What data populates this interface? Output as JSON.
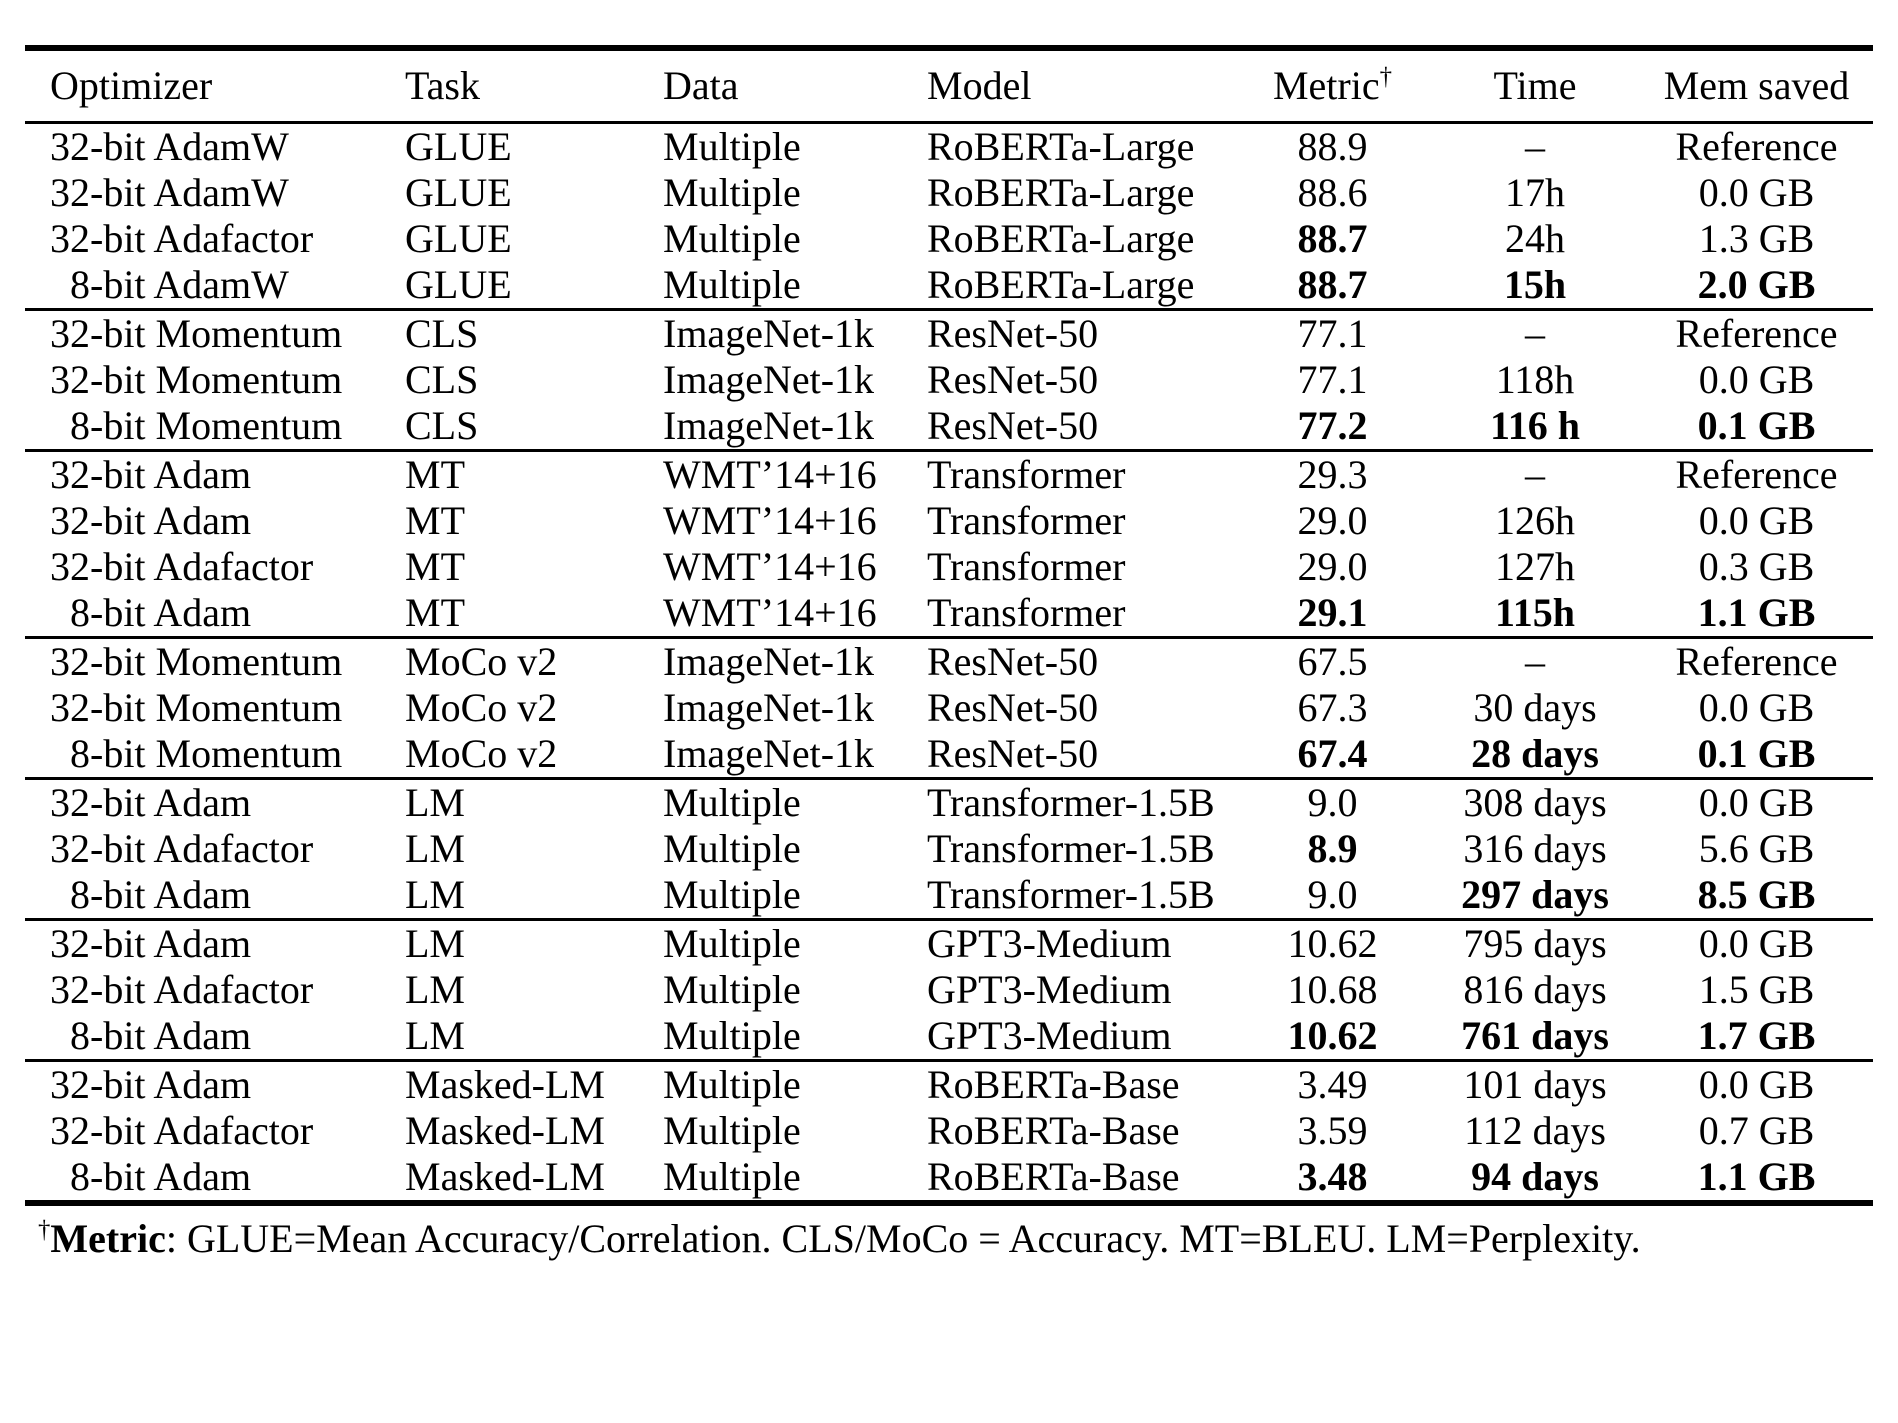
{
  "table": {
    "header": {
      "optimizer": "Optimizer",
      "task": "Task",
      "data": "Data",
      "model": "Model",
      "metric": "Metric",
      "metric_sup": "†",
      "time": "Time",
      "mem": "Mem saved"
    },
    "groups": [
      {
        "rows": [
          {
            "cells": [
              "32-bit AdamW",
              "GLUE",
              "Multiple",
              "RoBERTa-Large",
              "88.9",
              "–",
              "Reference"
            ],
            "bold": []
          },
          {
            "cells": [
              "32-bit AdamW",
              "GLUE",
              "Multiple",
              "RoBERTa-Large",
              "88.6",
              "17h",
              "0.0 GB"
            ],
            "bold": []
          },
          {
            "cells": [
              "32-bit Adafactor",
              "GLUE",
              "Multiple",
              "RoBERTa-Large",
              "88.7",
              "24h",
              "1.3 GB"
            ],
            "bold": [
              4
            ]
          },
          {
            "cells": [
              "8-bit AdamW",
              "GLUE",
              "Multiple",
              "RoBERTa-Large",
              "88.7",
              "15h",
              "2.0 GB"
            ],
            "bold": [
              4,
              5,
              6
            ]
          }
        ]
      },
      {
        "rows": [
          {
            "cells": [
              "32-bit Momentum",
              "CLS",
              "ImageNet-1k",
              "ResNet-50",
              "77.1",
              "–",
              "Reference"
            ],
            "bold": []
          },
          {
            "cells": [
              "32-bit Momentum",
              "CLS",
              "ImageNet-1k",
              "ResNet-50",
              "77.1",
              "118h",
              "0.0 GB"
            ],
            "bold": []
          },
          {
            "cells": [
              "8-bit Momentum",
              "CLS",
              "ImageNet-1k",
              "ResNet-50",
              "77.2",
              "116 h",
              "0.1 GB"
            ],
            "bold": [
              4,
              5,
              6
            ]
          }
        ]
      },
      {
        "rows": [
          {
            "cells": [
              "32-bit Adam",
              "MT",
              "WMT’14+16",
              "Transformer",
              "29.3",
              "–",
              "Reference"
            ],
            "bold": []
          },
          {
            "cells": [
              "32-bit Adam",
              "MT",
              "WMT’14+16",
              "Transformer",
              "29.0",
              "126h",
              "0.0 GB"
            ],
            "bold": []
          },
          {
            "cells": [
              "32-bit Adafactor",
              "MT",
              "WMT’14+16",
              "Transformer",
              "29.0",
              "127h",
              "0.3 GB"
            ],
            "bold": []
          },
          {
            "cells": [
              "8-bit Adam",
              "MT",
              "WMT’14+16",
              "Transformer",
              "29.1",
              "115h",
              "1.1 GB"
            ],
            "bold": [
              4,
              5,
              6
            ]
          }
        ]
      },
      {
        "rows": [
          {
            "cells": [
              "32-bit Momentum",
              "MoCo v2",
              "ImageNet-1k",
              "ResNet-50",
              "67.5",
              "–",
              "Reference"
            ],
            "bold": []
          },
          {
            "cells": [
              "32-bit Momentum",
              "MoCo v2",
              "ImageNet-1k",
              "ResNet-50",
              "67.3",
              "30 days",
              "0.0 GB"
            ],
            "bold": []
          },
          {
            "cells": [
              "8-bit Momentum",
              "MoCo v2",
              "ImageNet-1k",
              "ResNet-50",
              "67.4",
              "28 days",
              "0.1 GB"
            ],
            "bold": [
              4,
              5,
              6
            ]
          }
        ]
      },
      {
        "rows": [
          {
            "cells": [
              "32-bit Adam",
              "LM",
              "Multiple",
              "Transformer-1.5B",
              "9.0",
              "308 days",
              "0.0 GB"
            ],
            "bold": []
          },
          {
            "cells": [
              "32-bit Adafactor",
              "LM",
              "Multiple",
              "Transformer-1.5B",
              "8.9",
              "316 days",
              "5.6 GB"
            ],
            "bold": [
              4
            ]
          },
          {
            "cells": [
              "8-bit Adam",
              "LM",
              "Multiple",
              "Transformer-1.5B",
              "9.0",
              "297 days",
              "8.5 GB"
            ],
            "bold": [
              5,
              6
            ]
          }
        ]
      },
      {
        "rows": [
          {
            "cells": [
              "32-bit Adam",
              "LM",
              "Multiple",
              "GPT3-Medium",
              "10.62",
              "795 days",
              "0.0 GB"
            ],
            "bold": []
          },
          {
            "cells": [
              "32-bit Adafactor",
              "LM",
              "Multiple",
              "GPT3-Medium",
              "10.68",
              "816 days",
              "1.5 GB"
            ],
            "bold": []
          },
          {
            "cells": [
              "8-bit Adam",
              "LM",
              "Multiple",
              "GPT3-Medium",
              "10.62",
              "761 days",
              "1.7 GB"
            ],
            "bold": [
              4,
              5,
              6
            ]
          }
        ]
      },
      {
        "rows": [
          {
            "cells": [
              "32-bit Adam",
              "Masked-LM",
              "Multiple",
              "RoBERTa-Base",
              "3.49",
              "101 days",
              "0.0 GB"
            ],
            "bold": []
          },
          {
            "cells": [
              "32-bit Adafactor",
              "Masked-LM",
              "Multiple",
              "RoBERTa-Base",
              "3.59",
              "112 days",
              "0.7 GB"
            ],
            "bold": []
          },
          {
            "cells": [
              "8-bit Adam",
              "Masked-LM",
              "Multiple",
              "RoBERTa-Base",
              "3.48",
              "94 days",
              "1.1 GB"
            ],
            "bold": [
              4,
              5,
              6
            ]
          }
        ]
      }
    ]
  },
  "footnote": {
    "sup": "†",
    "label": "Metric",
    "text": ": GLUE=Mean Accuracy/Correlation. CLS/MoCo = Accuracy. MT=BLEU. LM=Perplexity."
  }
}
